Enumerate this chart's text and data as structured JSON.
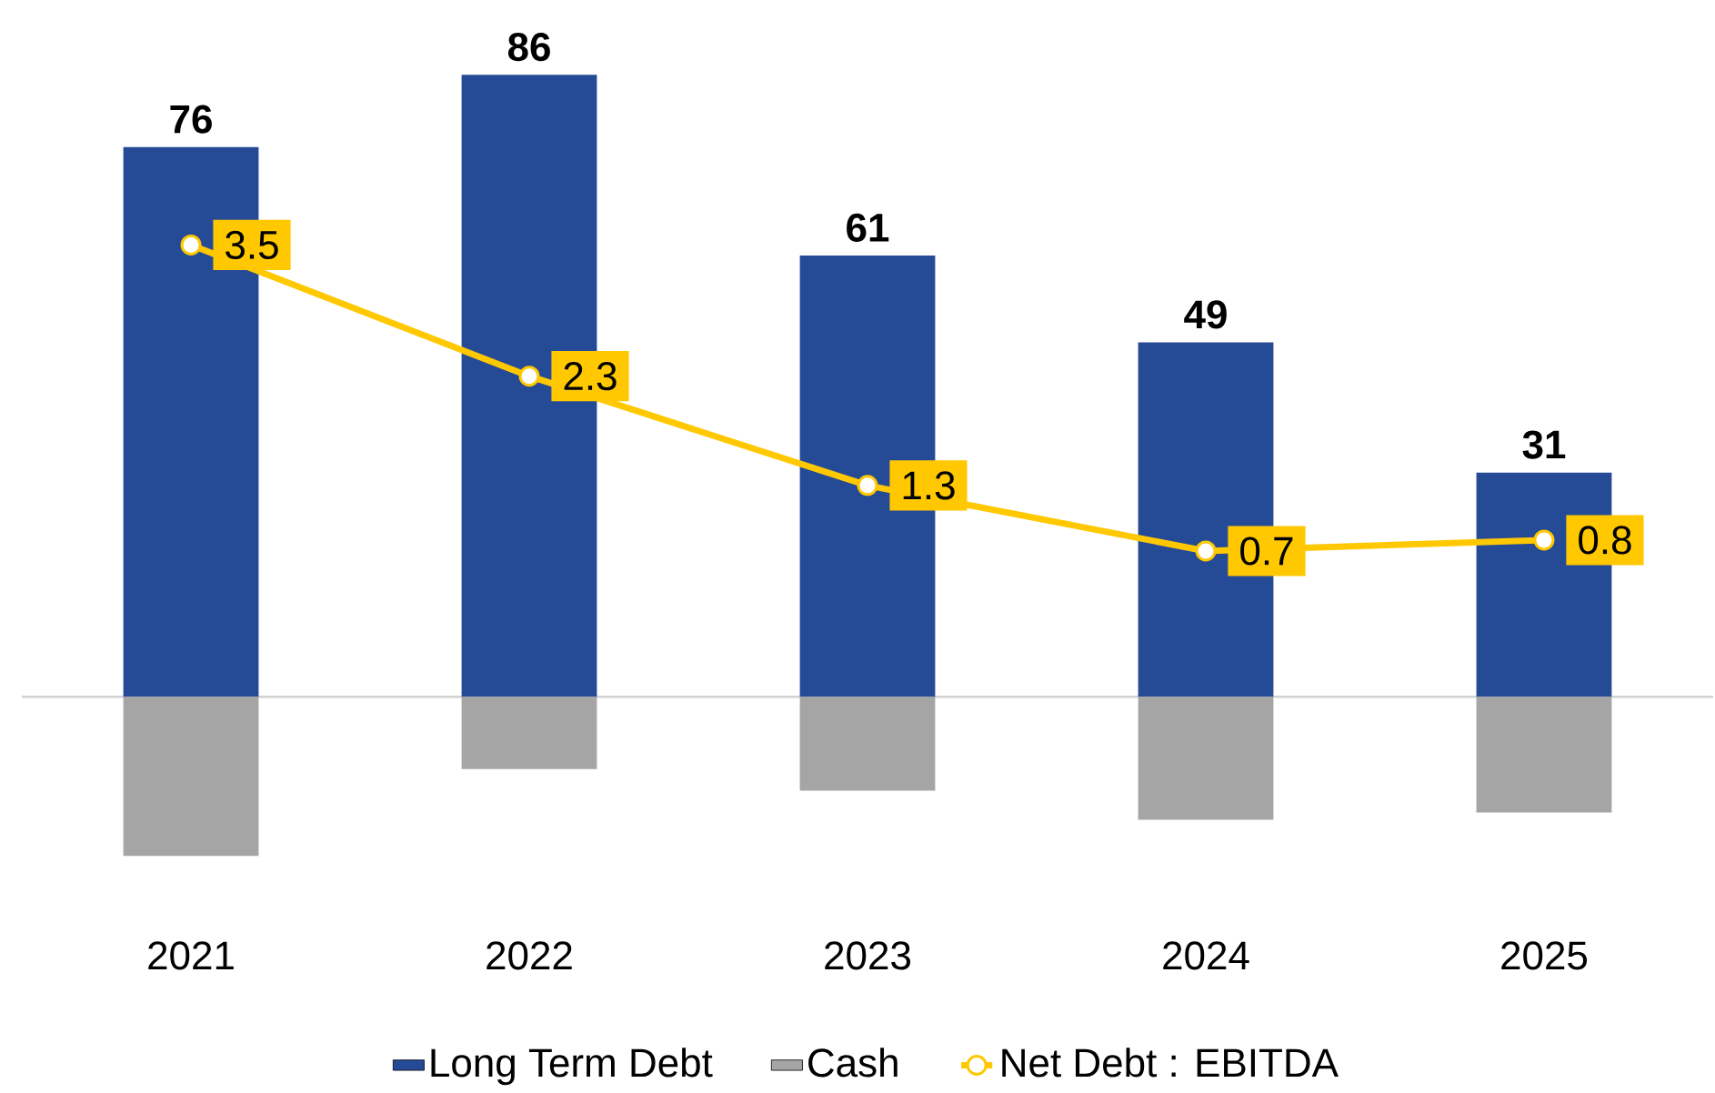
{
  "chart_data": {
    "type": "bar",
    "stacked": true,
    "categories": [
      "2021",
      "2022",
      "2023",
      "2024",
      "2025"
    ],
    "series": [
      {
        "name": "Long Term Debt",
        "color": "#264b96",
        "values": [
          76,
          86,
          61,
          49,
          31
        ],
        "value_labels": [
          "76",
          "86",
          "61",
          "49",
          "31"
        ]
      },
      {
        "name": "Cash",
        "color": "#a5a5a5",
        "values": [
          -22,
          -10,
          -13,
          -17,
          -16
        ]
      },
      {
        "name": "Net Debt : EBITDA",
        "type": "line",
        "axis": "y2",
        "color": "#ffc800",
        "values": [
          3.5,
          2.3,
          1.3,
          0.7,
          0.8
        ],
        "value_labels": [
          "3.5",
          "2.3",
          "1.3",
          "0.7",
          "0.8"
        ]
      }
    ],
    "tick_labels": "x",
    "legend": "bottom",
    "marker": "circle"
  }
}
